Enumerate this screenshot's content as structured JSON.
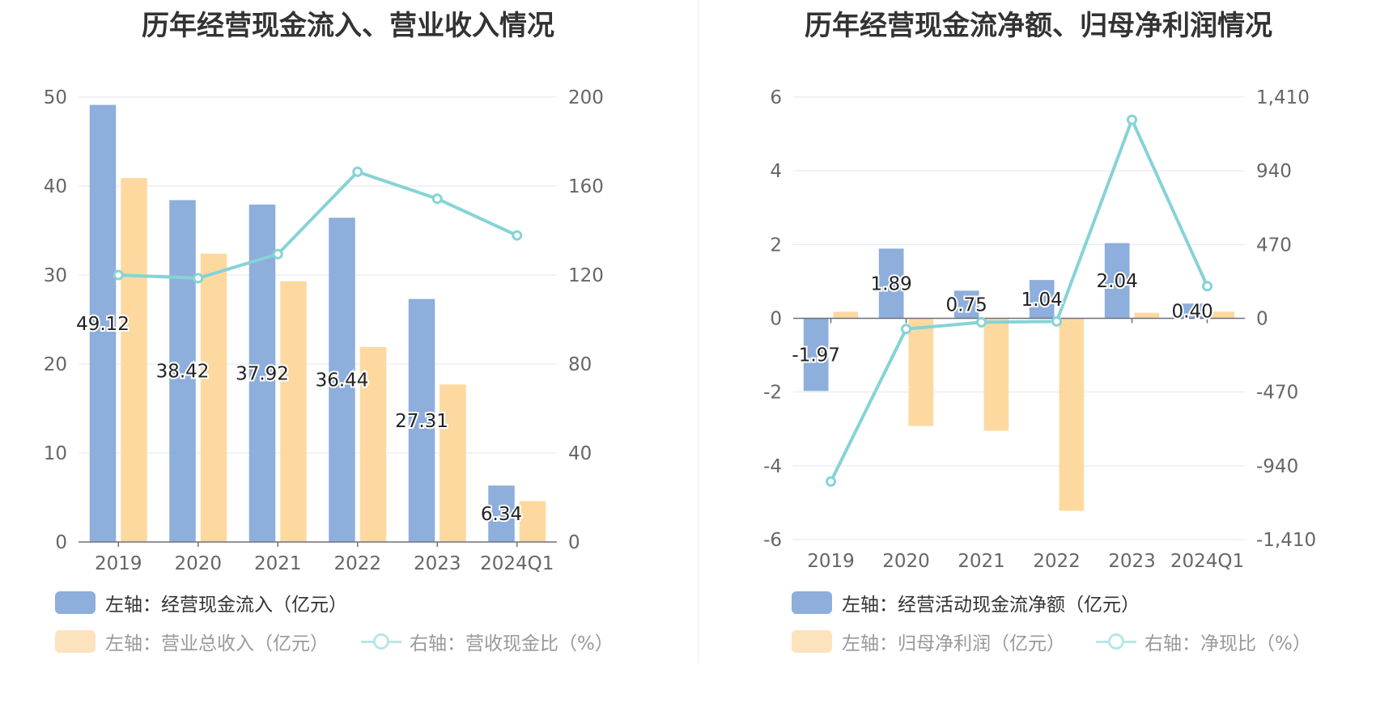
{
  "chart_data": [
    {
      "type": "bar",
      "title": "历年经营现金流入、营业收入情况",
      "categories": [
        "2019",
        "2020",
        "2021",
        "2022",
        "2023",
        "2024Q1"
      ],
      "y_left": {
        "ylim": [
          0,
          50
        ],
        "ticks": [
          "0",
          "10",
          "20",
          "30",
          "40",
          "50"
        ]
      },
      "y_right": {
        "ylim": [
          0,
          200
        ],
        "ticks": [
          "0",
          "40",
          "80",
          "120",
          "160",
          "200"
        ]
      },
      "series": [
        {
          "name": "左轴：经营现金流入（亿元）",
          "type": "bar",
          "axis": "left",
          "color": "#8eaedc",
          "values": [
            49.12,
            38.42,
            37.92,
            36.44,
            27.31,
            6.34
          ],
          "labels": [
            "49.12",
            "38.42",
            "37.92",
            "36.44",
            "27.31",
            "6.34"
          ]
        },
        {
          "name": "左轴：营业总收入（亿元）",
          "type": "bar",
          "axis": "left",
          "color": "#fdd9a0",
          "values": [
            40.9,
            32.4,
            29.3,
            21.9,
            17.7,
            4.6
          ]
        },
        {
          "name": "右轴：营收现金比（%）",
          "type": "line",
          "axis": "right",
          "color": "#86d3d6",
          "values": [
            120,
            118.6,
            129.4,
            166.4,
            154.3,
            137.8
          ]
        }
      ],
      "grid": true
    },
    {
      "type": "bar",
      "title": "历年经营现金流净额、归母净利润情况",
      "categories": [
        "2019",
        "2020",
        "2021",
        "2022",
        "2023",
        "2024Q1"
      ],
      "y_left": {
        "ylim": [
          -6,
          6
        ],
        "ticks": [
          "-6",
          "-4",
          "-2",
          "0",
          "2",
          "4",
          "6"
        ]
      },
      "y_right": {
        "ylim": [
          -1410,
          1410
        ],
        "ticks": [
          "-1,410",
          "-940",
          "-470",
          "0",
          "470",
          "940",
          "1,410"
        ]
      },
      "series": [
        {
          "name": "左轴：经营活动现金流净额（亿元）",
          "type": "bar",
          "axis": "left",
          "color": "#8eaedc",
          "values": [
            -1.97,
            1.89,
            0.75,
            1.04,
            2.04,
            0.4
          ],
          "labels": [
            "-1.97",
            "1.89",
            "0.75",
            "1.04",
            "2.04",
            "0.40"
          ]
        },
        {
          "name": "左轴：归母净利润（亿元）",
          "type": "bar",
          "axis": "left",
          "color": "#fdd9a0",
          "values": [
            0.18,
            -2.92,
            -3.05,
            -5.22,
            0.15,
            0.18
          ]
        },
        {
          "name": "右轴：净现比（%）",
          "type": "line",
          "axis": "right",
          "color": "#86d3d6",
          "values": [
            -1040,
            -68,
            -25,
            -20,
            1265,
            205
          ]
        }
      ],
      "grid": true
    }
  ]
}
